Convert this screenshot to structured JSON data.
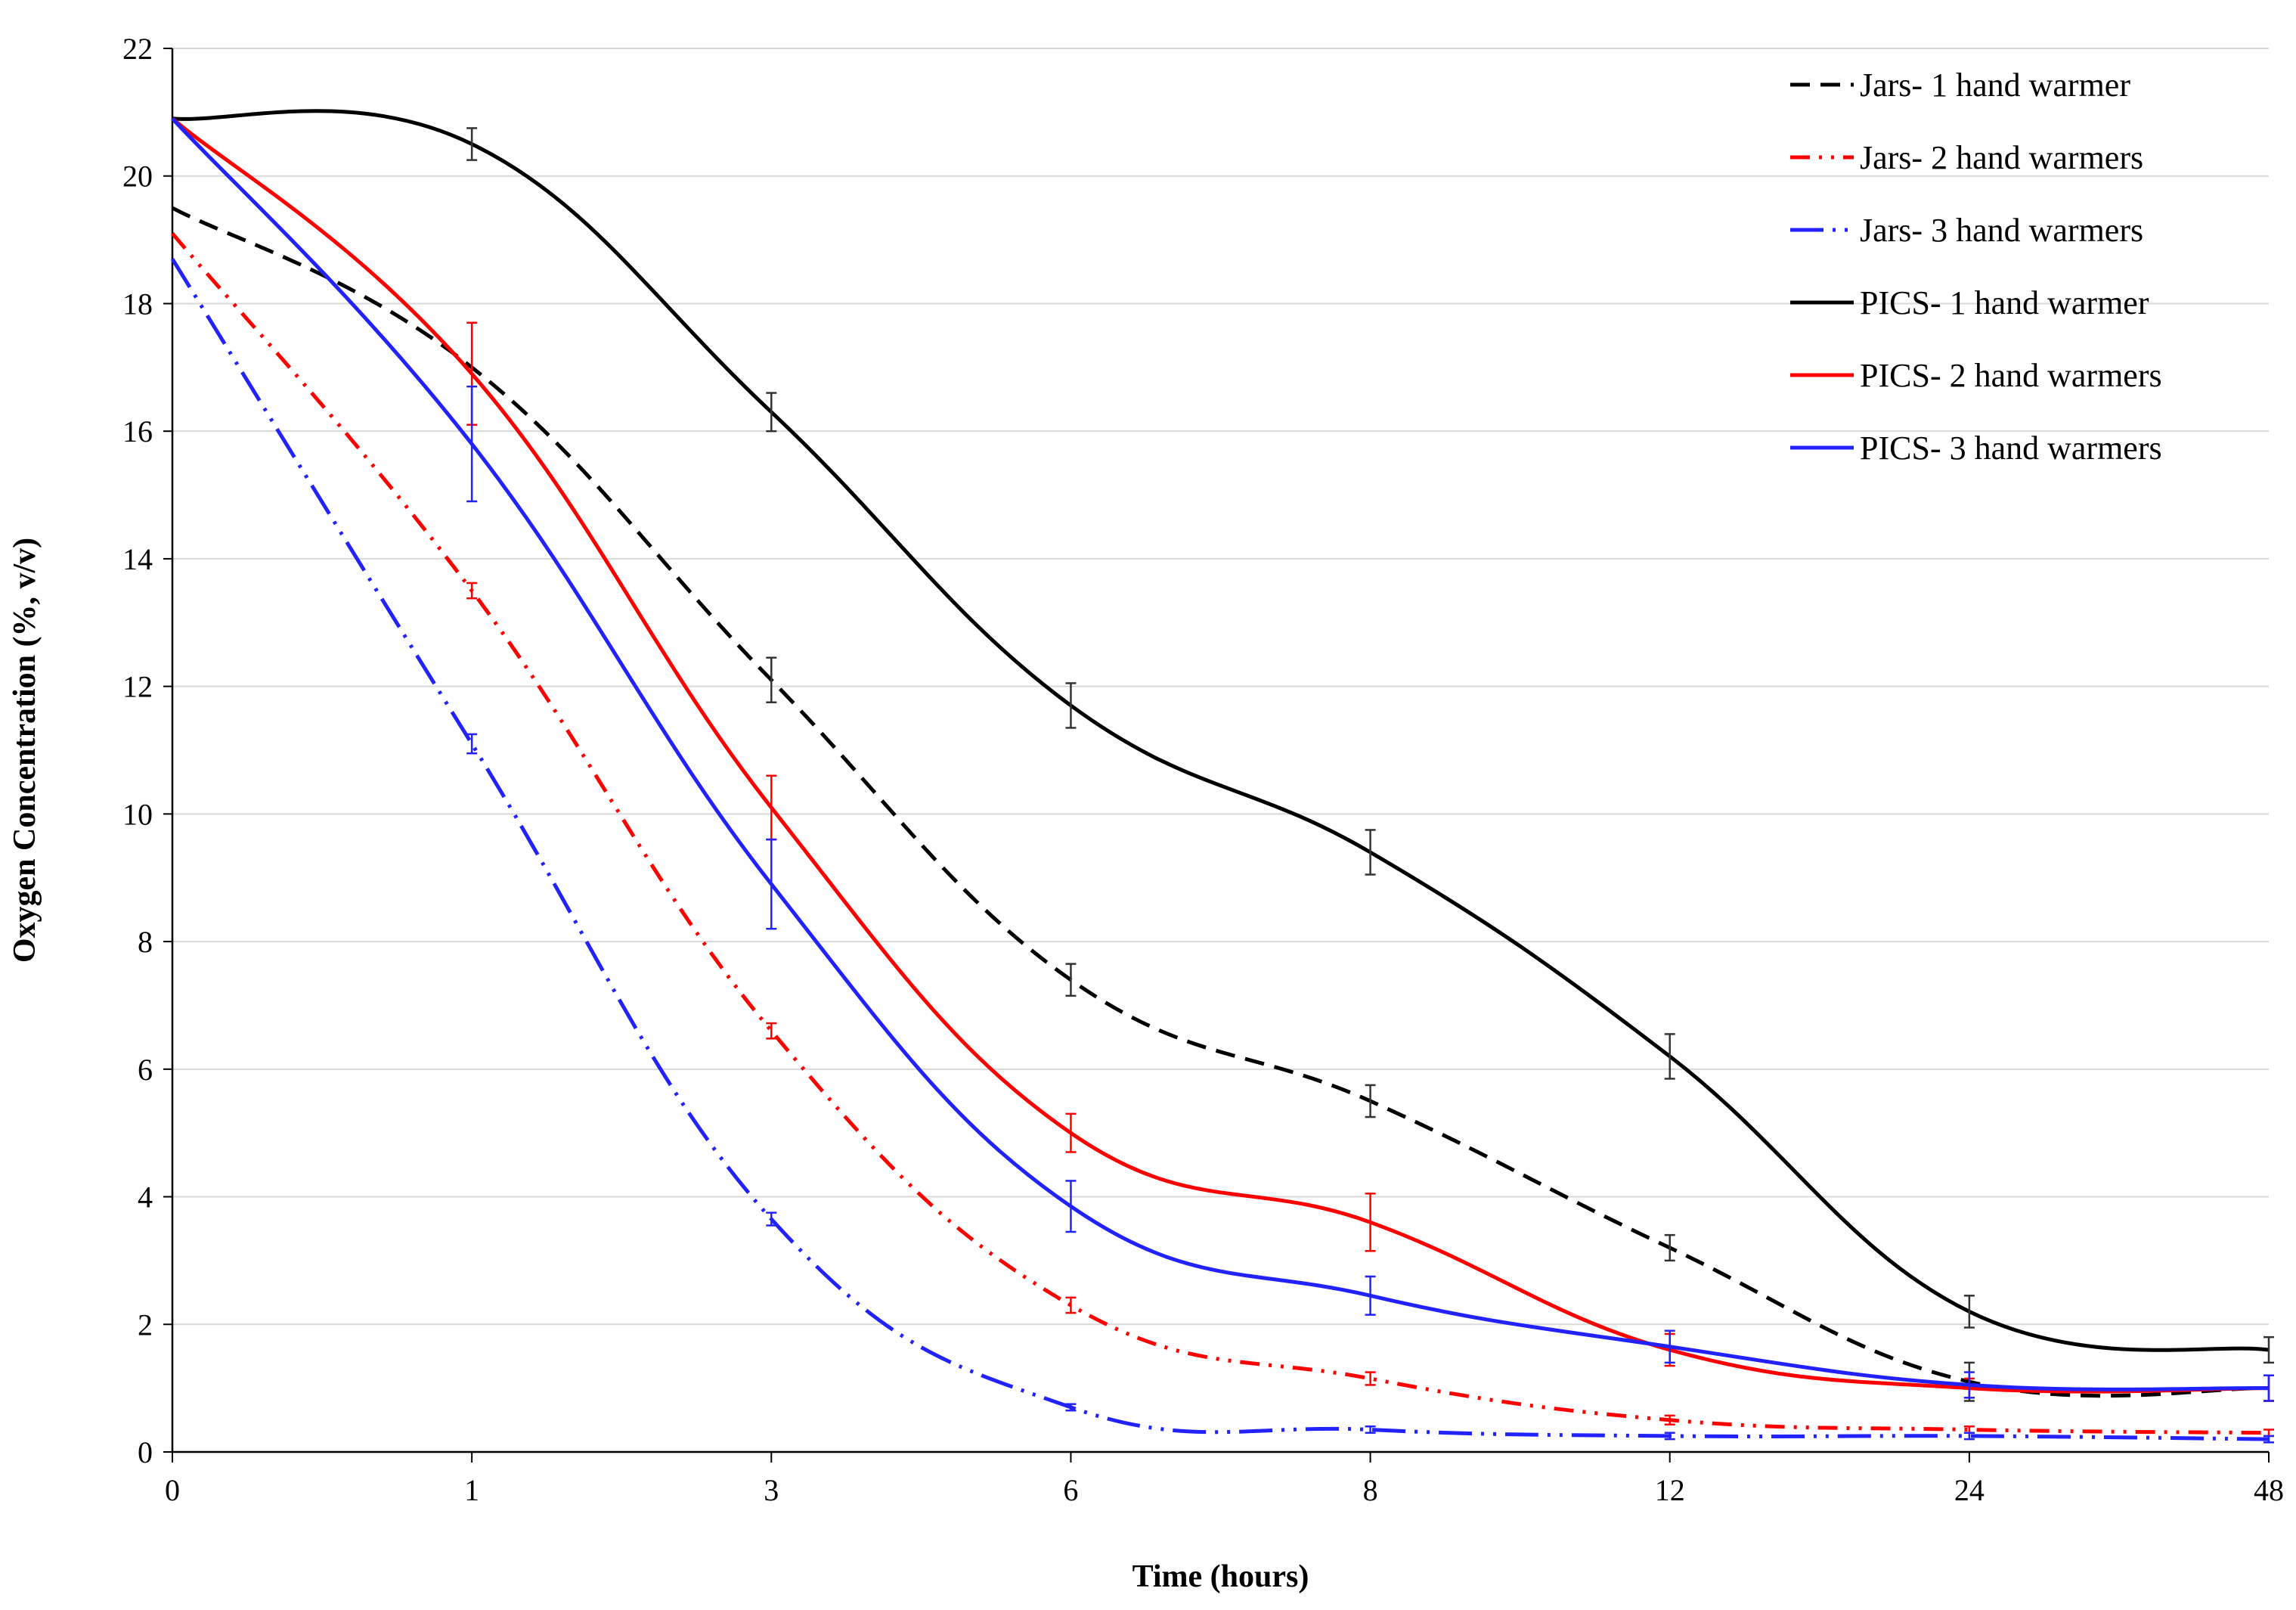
{
  "chart_data": {
    "type": "line",
    "title": "",
    "xlabel": "Time (hours)",
    "ylabel": "Oxygen Concentration (%, v/v)",
    "categories": [
      "0",
      "1",
      "3",
      "6",
      "8",
      "12",
      "24",
      "48"
    ],
    "ylim": [
      0,
      22
    ],
    "yticks": [
      0,
      2,
      4,
      6,
      8,
      10,
      12,
      14,
      16,
      18,
      20,
      22
    ],
    "grid": "horizontal",
    "legend_position": "top-right",
    "series": [
      {
        "name": "Jars- 1 hand warmer",
        "style": "dashed",
        "color": "#000000",
        "values": [
          19.5,
          17.0,
          12.1,
          7.4,
          5.5,
          3.2,
          1.1,
          1.0
        ],
        "errors": [
          0,
          0,
          0.35,
          0.25,
          0.25,
          0.2,
          0.3,
          0.2
        ]
      },
      {
        "name": "Jars- 2 hand warmers",
        "style": "dashdotdot",
        "color": "#ff0000",
        "values": [
          19.1,
          13.5,
          6.6,
          2.3,
          1.15,
          0.5,
          0.35,
          0.3
        ],
        "errors": [
          0,
          0.12,
          0.12,
          0.12,
          0.1,
          0.07,
          0.05,
          0.05
        ]
      },
      {
        "name": "Jars- 3 hand warmers",
        "style": "longdashdotdot",
        "color": "#2222ff",
        "values": [
          18.7,
          11.1,
          3.65,
          0.7,
          0.35,
          0.25,
          0.25,
          0.2
        ],
        "errors": [
          0,
          0.15,
          0.1,
          0.05,
          0.05,
          0.05,
          0.05,
          0.05
        ]
      },
      {
        "name": "PICS- 1 hand warmer",
        "style": "solid",
        "color": "#000000",
        "values": [
          20.9,
          20.5,
          16.3,
          11.7,
          9.4,
          6.2,
          2.2,
          1.6
        ],
        "errors": [
          0,
          0.25,
          0.3,
          0.35,
          0.35,
          0.35,
          0.25,
          0.2
        ]
      },
      {
        "name": "PICS- 2 hand warmers",
        "style": "solid",
        "color": "#ff0000",
        "values": [
          20.9,
          16.9,
          10.1,
          5.0,
          3.6,
          1.6,
          1.0,
          1.0
        ],
        "errors": [
          0,
          0.8,
          0.5,
          0.3,
          0.45,
          0.25,
          0.15,
          0.2
        ]
      },
      {
        "name": "PICS- 3 hand warmers",
        "style": "solid",
        "color": "#2222ff",
        "values": [
          20.9,
          15.8,
          8.9,
          3.85,
          2.45,
          1.65,
          1.05,
          1.0
        ],
        "errors": [
          0,
          0.9,
          0.7,
          0.4,
          0.3,
          0.25,
          0.2,
          0.2
        ]
      }
    ]
  }
}
